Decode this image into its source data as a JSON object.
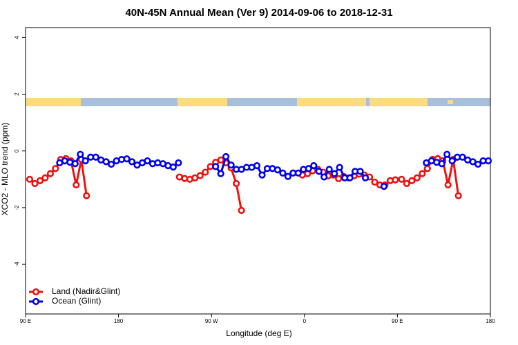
{
  "chart_data": {
    "type": "line",
    "title": "40N-45N Annual Mean (Ver 9)   2014-09-06 to 2018-12-31",
    "xlabel": "Longitude (deg E)",
    "ylabel": "XCO2 - MLO trend (ppm)",
    "xlim": [
      90,
      540
    ],
    "ylim": [
      -5.75,
      4.35
    ],
    "xticks": [
      {
        "value": 90,
        "label": "90 E"
      },
      {
        "value": 180,
        "label": "180"
      },
      {
        "value": 270,
        "label": "90 W"
      },
      {
        "value": 360,
        "label": "0"
      },
      {
        "value": 450,
        "label": "90 E"
      },
      {
        "value": 540,
        "label": "180"
      }
    ],
    "yticks": [
      -4,
      -2,
      0,
      2,
      4
    ],
    "legend": "bottom-left",
    "series": [
      {
        "name": "Land (Nadir&Glint)",
        "color": "#ee1111",
        "x": [
          94,
          99,
          104,
          109,
          114,
          119,
          124,
          129,
          134,
          139,
          144,
          149,
          null,
          239,
          244,
          249,
          254,
          259,
          264,
          269,
          274,
          279,
          284,
          289,
          294,
          299,
          null,
          358,
          363,
          368,
          373,
          378,
          383,
          388,
          393,
          398,
          403,
          408,
          413,
          418,
          423,
          428,
          433,
          438,
          443,
          448,
          454,
          459,
          464,
          469,
          474,
          479,
          484,
          489,
          494,
          499,
          504,
          509
        ],
        "values": [
          -1.0,
          -1.15,
          -1.05,
          -0.95,
          -0.8,
          -0.62,
          -0.3,
          -0.27,
          -0.35,
          -1.2,
          -0.3,
          -1.58,
          null,
          -0.92,
          -0.97,
          -1.0,
          -0.95,
          -0.87,
          -0.75,
          -0.55,
          -0.4,
          -0.32,
          -0.42,
          -0.6,
          -1.15,
          -2.1,
          null,
          -0.85,
          -0.8,
          -0.7,
          -0.65,
          -0.75,
          -0.88,
          -0.85,
          -0.98,
          -0.9,
          -0.95,
          -0.88,
          -0.82,
          -0.85,
          -0.92,
          -1.1,
          -1.2,
          -1.2,
          -1.05,
          -1.02,
          -1.0,
          -1.15,
          -1.05,
          -0.95,
          -0.8,
          -0.62,
          -0.3,
          -0.27,
          -0.35,
          -1.2,
          -0.3,
          -1.58
        ]
      },
      {
        "name": "Ocean (Glint)",
        "color": "#0000ee",
        "x": [
          123,
          128,
          133,
          138,
          143,
          148,
          153,
          158,
          163,
          168,
          173,
          178,
          183,
          188,
          193,
          198,
          203,
          208,
          213,
          218,
          223,
          228,
          233,
          238,
          null,
          274,
          279,
          284,
          289,
          294,
          299,
          304,
          309,
          314,
          319,
          324,
          329,
          334,
          339,
          344,
          349,
          354,
          359,
          364,
          369,
          374,
          379,
          384,
          389,
          394,
          399,
          404,
          409,
          414,
          419,
          null,
          437,
          null,
          478,
          483,
          488,
          493,
          498,
          503,
          508,
          513,
          518,
          523,
          528,
          533,
          538
        ],
        "values": [
          -0.42,
          -0.35,
          -0.4,
          -0.45,
          -0.12,
          -0.35,
          -0.22,
          -0.22,
          -0.32,
          -0.38,
          -0.47,
          -0.35,
          -0.3,
          -0.28,
          -0.38,
          -0.5,
          -0.42,
          -0.35,
          -0.45,
          -0.42,
          -0.45,
          -0.52,
          -0.57,
          -0.42,
          null,
          -0.55,
          -0.8,
          -0.2,
          -0.5,
          -0.65,
          -0.65,
          -0.58,
          -0.58,
          -0.52,
          -0.85,
          -0.62,
          -0.62,
          -0.67,
          -0.78,
          -0.9,
          -0.78,
          -0.78,
          -0.65,
          -0.62,
          -0.52,
          -0.72,
          -0.92,
          -0.65,
          -0.8,
          -0.58,
          -0.95,
          -0.95,
          -0.72,
          -0.72,
          -0.95,
          null,
          -1.25,
          null,
          -0.42,
          -0.35,
          -0.4,
          -0.45,
          -0.12,
          -0.35,
          -0.22,
          -0.22,
          -0.32,
          -0.38,
          -0.47,
          -0.35,
          -0.35
        ]
      }
    ]
  }
}
